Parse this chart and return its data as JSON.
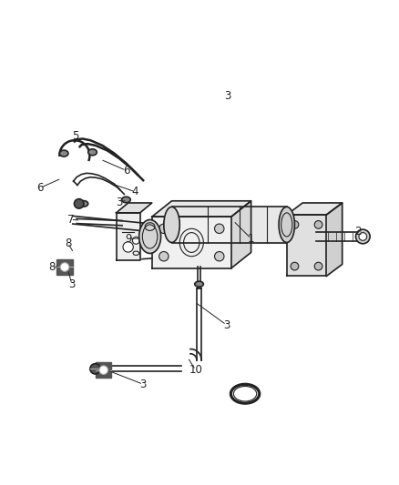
{
  "bg_color": "#ffffff",
  "line_color": "#222222",
  "label_color": "#333333",
  "figsize": [
    4.38,
    5.33
  ],
  "dpi": 100
}
